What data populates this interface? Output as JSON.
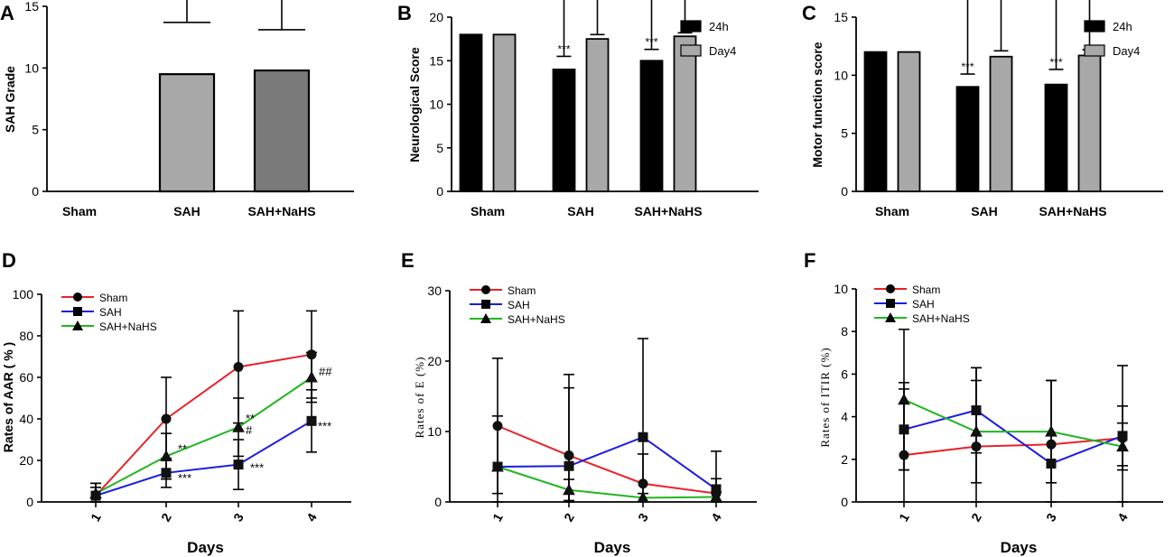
{
  "colors": {
    "bar_black": "#000000",
    "bar_gray_light": "#a8a8a8",
    "bar_gray_dark": "#7a7a7a",
    "sham": "#e8222a",
    "sah": "#1b1be0",
    "nahs": "#22b522"
  },
  "chart_data": [
    {
      "id": "A",
      "type": "bar",
      "panel_label": "A",
      "ylabel": "SAH Grade",
      "ylim": [
        0,
        15
      ],
      "yticks": [
        "0",
        "5",
        "10",
        "15"
      ],
      "categories": [
        "Sham",
        "SAH",
        "SAH+NaHS"
      ],
      "values": [
        0,
        9.5,
        9.8
      ],
      "errors": [
        0,
        4.2,
        3.3
      ]
    },
    {
      "id": "B",
      "type": "bar",
      "panel_label": "B",
      "ylabel": "Neurological Score",
      "ylim": [
        0,
        20
      ],
      "yticks": [
        "0",
        "5",
        "10",
        "15",
        "20"
      ],
      "categories": [
        "Sham",
        "SAH",
        "SAH+NaHS"
      ],
      "series": [
        {
          "name": "24h",
          "values": [
            18,
            14,
            15
          ],
          "errors": [
            0,
            1.5,
            1.3
          ],
          "annotations": [
            "",
            "***",
            "***"
          ]
        },
        {
          "name": "Day4",
          "values": [
            18,
            17.5,
            17.8
          ],
          "errors": [
            0,
            0.5,
            0.4
          ],
          "annotations": [
            "",
            "",
            ""
          ]
        }
      ],
      "legend": [
        "24h",
        "Day4"
      ]
    },
    {
      "id": "C",
      "type": "bar",
      "panel_label": "C",
      "ylabel": "Motor function score",
      "ylim": [
        0,
        15
      ],
      "yticks": [
        "0",
        "5",
        "10",
        "15"
      ],
      "categories": [
        "Sham",
        "SAH",
        "SAH+NaHS"
      ],
      "series": [
        {
          "name": "24h",
          "values": [
            12,
            9,
            9.2
          ],
          "errors": [
            0,
            1.1,
            1.3
          ],
          "annotations": [
            "",
            "***",
            "***"
          ]
        },
        {
          "name": "Day4",
          "values": [
            12,
            11.6,
            11.7
          ],
          "errors": [
            0,
            0.5,
            0.5
          ],
          "annotations": [
            "",
            "",
            ""
          ]
        }
      ],
      "legend": [
        "24h",
        "Day4"
      ]
    },
    {
      "id": "D",
      "type": "line",
      "panel_label": "D",
      "ylabel": "Rates of AAR ( % )",
      "xlabel": "Days",
      "x": [
        "1",
        "2",
        "3",
        "4"
      ],
      "ylim": [
        0,
        100
      ],
      "yticks": [
        "0",
        "20",
        "40",
        "60",
        "80",
        "100"
      ],
      "series": [
        {
          "name": "Sham",
          "values": [
            3,
            40,
            65,
            71
          ],
          "errors": [
            6,
            20,
            27,
            21
          ],
          "marker": "circle"
        },
        {
          "name": "SAH",
          "values": [
            3,
            14,
            18,
            39
          ],
          "errors": [
            4,
            7,
            12,
            15
          ],
          "marker": "square"
        },
        {
          "name": "SAH+NaHS",
          "values": [
            4,
            22,
            36,
            60
          ],
          "errors": [
            5,
            11,
            14,
            12
          ],
          "marker": "triangle"
        }
      ],
      "annotations": [
        {
          "text": "**",
          "series": "SAH+NaHS",
          "index": 1
        },
        {
          "text": "***",
          "series": "SAH",
          "index": 1
        },
        {
          "text": "**",
          "series": "SAH+NaHS",
          "index": 2
        },
        {
          "text": "#",
          "series": "SAH+NaHS",
          "index": 2
        },
        {
          "text": "***",
          "series": "SAH",
          "index": 2
        },
        {
          "text": "##",
          "series": "SAH+NaHS",
          "index": 3
        },
        {
          "text": "***",
          "series": "SAH",
          "index": 3
        }
      ],
      "legend": [
        "Sham",
        "SAH",
        "SAH+NaHS"
      ]
    },
    {
      "id": "E",
      "type": "line",
      "panel_label": "E",
      "ylabel": "Rates of E (%)",
      "xlabel": "Days",
      "x": [
        "1",
        "2",
        "3",
        "4"
      ],
      "ylim": [
        0,
        30
      ],
      "yticks": [
        "0",
        "10",
        "20",
        "30"
      ],
      "series": [
        {
          "name": "Sham",
          "values": [
            10.8,
            6.6,
            2.6,
            1.2
          ],
          "errors": [
            9.6,
            11.5,
            4.2,
            2.1
          ],
          "marker": "circle"
        },
        {
          "name": "SAH",
          "values": [
            5,
            5.1,
            9.2,
            1.8
          ],
          "errors": [
            7.2,
            11.1,
            14,
            5.4
          ],
          "marker": "square"
        },
        {
          "name": "SAH+NaHS",
          "values": [
            5,
            1.7,
            0.6,
            0.7
          ],
          "errors": [
            0,
            1.5,
            0.6,
            0.7
          ],
          "marker": "triangle"
        }
      ],
      "legend": [
        "Sham",
        "SAH",
        "SAH+NaHS"
      ]
    },
    {
      "id": "F",
      "type": "line",
      "panel_label": "F",
      "ylabel": "Rates of ITIR (%)",
      "xlabel": "Days",
      "x": [
        "1",
        "2",
        "3",
        "4"
      ],
      "ylim": [
        0,
        10
      ],
      "yticks": [
        "0",
        "2",
        "4",
        "6",
        "8",
        "10"
      ],
      "series": [
        {
          "name": "Sham",
          "values": [
            2.2,
            2.6,
            2.7,
            3.0
          ],
          "errors": [
            3.4,
            3.7,
            3.0,
            3.4
          ],
          "marker": "circle"
        },
        {
          "name": "SAH",
          "values": [
            3.4,
            4.3,
            1.8,
            3.1
          ],
          "errors": [
            1.9,
            2.0,
            0.9,
            1.4
          ],
          "marker": "square"
        },
        {
          "name": "SAH+NaHS",
          "values": [
            4.8,
            3.3,
            3.3,
            2.6
          ],
          "errors": [
            3.3,
            2.4,
            2.4,
            1.1
          ],
          "marker": "triangle"
        }
      ],
      "legend": [
        "Sham",
        "SAH",
        "SAH+NaHS"
      ]
    }
  ]
}
